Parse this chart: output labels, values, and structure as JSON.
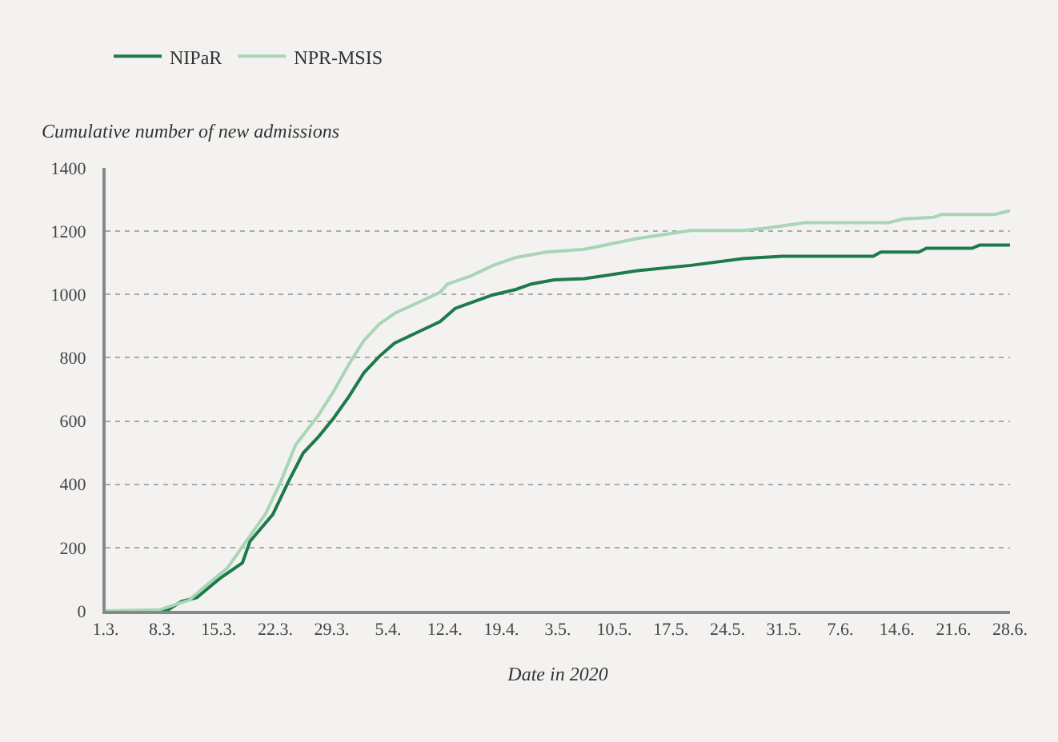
{
  "chart_data": {
    "type": "line",
    "ylabel": "Cumulative number of new admissions",
    "xlabel": "Date in 2020",
    "x": [
      "2020-03-01",
      "2020-03-09",
      "2020-03-11",
      "2020-03-13",
      "2020-03-16",
      "2020-03-19",
      "2020-03-20",
      "2020-03-23",
      "2020-03-25",
      "2020-03-27",
      "2020-03-29",
      "2020-03-31",
      "2020-04-02",
      "2020-04-04",
      "2020-04-06",
      "2020-04-08",
      "2020-04-11",
      "2020-04-14",
      "2020-04-16",
      "2020-04-19",
      "2020-04-21",
      "2020-04-24",
      "2020-04-26",
      "2020-04-29",
      "2020-05-03",
      "2020-05-10",
      "2020-05-17",
      "2020-05-24",
      "2020-05-29",
      "2020-06-10",
      "2020-06-11",
      "2020-06-16",
      "2020-06-17",
      "2020-06-23",
      "2020-06-24",
      "2020-06-28"
    ],
    "series": [
      {
        "name": "NIPaR",
        "color": "#1e7a4a",
        "values": [
          0,
          0,
          30,
          42,
          102,
          152,
          220,
          305,
          406,
          499,
          550,
          609,
          677,
          753,
          804,
          846,
          880,
          914,
          956,
          982,
          999,
          1016,
          1033,
          1046,
          1050,
          1075,
          1092,
          1114,
          1121,
          1121,
          1134,
          1134,
          1146,
          1146,
          1156,
          1156
        ]
      },
      {
        "name": "NPR-MSIS",
        "color": "#a8d5b5",
        "x": [
          "2020-03-01",
          "2020-03-08",
          "2020-03-12",
          "2020-03-14",
          "2020-03-17",
          "2020-03-19",
          "2020-03-22",
          "2020-03-24",
          "2020-03-26",
          "2020-03-29",
          "2020-03-31",
          "2020-04-02",
          "2020-04-04",
          "2020-04-06",
          "2020-04-08",
          "2020-04-11",
          "2020-04-14",
          "2020-04-15",
          "2020-04-18",
          "2020-04-21",
          "2020-04-24",
          "2020-04-28",
          "2020-05-03",
          "2020-05-10",
          "2020-05-17",
          "2020-05-24",
          "2020-05-27",
          "2020-06-01",
          "2020-06-12",
          "2020-06-14",
          "2020-06-18",
          "2020-06-19",
          "2020-06-26",
          "2020-06-28"
        ],
        "values": [
          0,
          3,
          34,
          76,
          135,
          203,
          305,
          406,
          525,
          618,
          694,
          779,
          855,
          906,
          940,
          973,
          1007,
          1033,
          1058,
          1092,
          1117,
          1134,
          1143,
          1177,
          1202,
          1202,
          1210,
          1227,
          1227,
          1239,
          1244,
          1253,
          1253,
          1265
        ]
      }
    ],
    "xlim": [
      "2020-03-01",
      "2020-06-28"
    ],
    "xticks": [
      {
        "value": "2020-03-01",
        "label": "1.3."
      },
      {
        "value": "2020-03-08T10:30",
        "label": "8.3."
      },
      {
        "value": "2020-03-15T21:00",
        "label": "15.3."
      },
      {
        "value": "2020-03-23T07:30",
        "label": "22.3."
      },
      {
        "value": "2020-03-30T18:00",
        "label": "29.3."
      },
      {
        "value": "2020-04-07T04:30",
        "label": "5.4."
      },
      {
        "value": "2020-04-14T15:00",
        "label": "12.4."
      },
      {
        "value": "2020-04-22T01:30",
        "label": "19.4."
      },
      {
        "value": "2020-04-29T12:00",
        "label": "3.5."
      },
      {
        "value": "2020-05-06T22:30",
        "label": "10.5."
      },
      {
        "value": "2020-05-14T09:00",
        "label": "17.5."
      },
      {
        "value": "2020-05-21T19:30",
        "label": "24.5."
      },
      {
        "value": "2020-05-29T06:00",
        "label": "31.5."
      },
      {
        "value": "2020-06-05T16:30",
        "label": "7.6."
      },
      {
        "value": "2020-06-13T03:00",
        "label": "14.6."
      },
      {
        "value": "2020-06-20T13:30",
        "label": "21.6."
      },
      {
        "value": "2020-06-28",
        "label": "28.6."
      }
    ],
    "ylim": [
      0,
      1400
    ],
    "yticks": [
      0,
      200,
      400,
      600,
      800,
      1000,
      1200,
      1400
    ],
    "grid": "y",
    "legend": "top left",
    "line_style": "solid"
  }
}
